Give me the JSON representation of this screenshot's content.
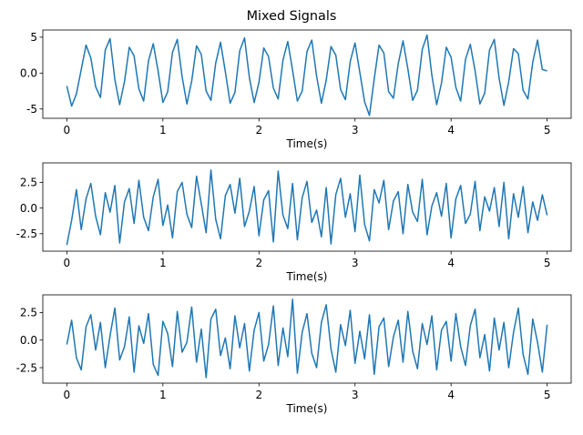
{
  "title": "Mixed Signals",
  "chart_data": [
    {
      "type": "line",
      "xlabel": "Time(s)",
      "ylabel": "",
      "xlim": [
        -0.25,
        5.25
      ],
      "ylim": [
        -6.3,
        6.0
      ],
      "xticks": [
        0,
        1,
        2,
        3,
        4,
        5
      ],
      "yticks": [
        -5,
        0,
        5
      ],
      "color": "#1f77b4",
      "grid": false,
      "series": [
        {
          "x": [
            0.0,
            0.05,
            0.1,
            0.15,
            0.2,
            0.25,
            0.3,
            0.35,
            0.4,
            0.45,
            0.5,
            0.55,
            0.6,
            0.65,
            0.7,
            0.75,
            0.8,
            0.85,
            0.9,
            0.95,
            1.0,
            1.05,
            1.1,
            1.15,
            1.2,
            1.25,
            1.3,
            1.35,
            1.4,
            1.45,
            1.5,
            1.55,
            1.6,
            1.65,
            1.7,
            1.75,
            1.8,
            1.85,
            1.9,
            1.95,
            2.0,
            2.05,
            2.1,
            2.15,
            2.2,
            2.25,
            2.3,
            2.35,
            2.4,
            2.45,
            2.5,
            2.55,
            2.6,
            2.65,
            2.7,
            2.75,
            2.8,
            2.85,
            2.9,
            2.95,
            3.0,
            3.05,
            3.1,
            3.15,
            3.2,
            3.25,
            3.3,
            3.35,
            3.4,
            3.45,
            3.5,
            3.55,
            3.6,
            3.65,
            3.7,
            3.75,
            3.8,
            3.85,
            3.9,
            3.95,
            4.0,
            4.05,
            4.1,
            4.15,
            4.2,
            4.25,
            4.3,
            4.35,
            4.4,
            4.45,
            4.5,
            4.55,
            4.6,
            4.65,
            4.7,
            4.75,
            4.8,
            4.85,
            4.9,
            4.95,
            5.0
          ],
          "values": [
            -1.8,
            -4.6,
            -2.9,
            0.5,
            3.9,
            2.1,
            -1.9,
            -3.4,
            3.2,
            4.8,
            -0.9,
            -4.4,
            -1.2,
            3.6,
            2.4,
            -2.2,
            -3.9,
            1.7,
            4.1,
            0.3,
            -4.1,
            -2.6,
            2.9,
            4.7,
            -0.5,
            -4.3,
            -1.1,
            3.8,
            2.6,
            -2.5,
            -3.8,
            1.4,
            4.3,
            0.2,
            -4.2,
            -2.7,
            3.1,
            4.9,
            -0.6,
            -4.1,
            -1.3,
            3.5,
            2.3,
            -2.1,
            -3.6,
            1.8,
            4.4,
            0.4,
            -3.9,
            -2.5,
            3.0,
            4.6,
            -0.4,
            -4.2,
            -1.0,
            3.7,
            2.5,
            -2.3,
            -3.7,
            1.6,
            4.2,
            0.1,
            -4.0,
            -5.9,
            -0.8,
            3.9,
            2.8,
            -2.6,
            -3.5,
            1.3,
            4.5,
            0.6,
            -3.8,
            -2.4,
            3.3,
            5.3,
            -0.3,
            -4.4,
            -1.4,
            3.6,
            2.2,
            -2.0,
            -3.9,
            1.9,
            4.0,
            0.3,
            -4.3,
            -2.8,
            3.2,
            4.7,
            -0.7,
            -4.5,
            -1.2,
            3.4,
            2.7,
            -2.4,
            -3.6,
            1.5,
            4.6,
            0.5,
            0.3
          ]
        }
      ]
    },
    {
      "type": "line",
      "xlabel": "Time(s)",
      "ylabel": "",
      "xlim": [
        -0.25,
        5.25
      ],
      "ylim": [
        -4.2,
        4.4
      ],
      "xticks": [
        0,
        1,
        2,
        3,
        4,
        5
      ],
      "yticks": [
        -2.5,
        0.0,
        2.5
      ],
      "color": "#1f77b4",
      "grid": false,
      "series": [
        {
          "x": [
            0.0,
            0.05,
            0.1,
            0.15,
            0.2,
            0.25,
            0.3,
            0.35,
            0.4,
            0.45,
            0.5,
            0.55,
            0.6,
            0.65,
            0.7,
            0.75,
            0.8,
            0.85,
            0.9,
            0.95,
            1.0,
            1.05,
            1.1,
            1.15,
            1.2,
            1.25,
            1.3,
            1.35,
            1.4,
            1.45,
            1.5,
            1.55,
            1.6,
            1.65,
            1.7,
            1.75,
            1.8,
            1.85,
            1.9,
            1.95,
            2.0,
            2.05,
            2.1,
            2.15,
            2.2,
            2.25,
            2.3,
            2.35,
            2.4,
            2.45,
            2.5,
            2.55,
            2.6,
            2.65,
            2.7,
            2.75,
            2.8,
            2.85,
            2.9,
            2.95,
            3.0,
            3.05,
            3.1,
            3.15,
            3.2,
            3.25,
            3.3,
            3.35,
            3.4,
            3.45,
            3.5,
            3.55,
            3.6,
            3.65,
            3.7,
            3.75,
            3.8,
            3.85,
            3.9,
            3.95,
            4.0,
            4.05,
            4.1,
            4.15,
            4.2,
            4.25,
            4.3,
            4.35,
            4.4,
            4.45,
            4.5,
            4.55,
            4.6,
            4.65,
            4.7,
            4.75,
            4.8,
            4.85,
            4.9,
            4.95,
            5.0
          ],
          "values": [
            -3.6,
            -1.2,
            1.8,
            -2.1,
            0.9,
            2.4,
            -0.8,
            -2.6,
            1.5,
            -0.4,
            2.2,
            -3.4,
            0.6,
            1.9,
            -1.5,
            2.7,
            -0.9,
            -2.2,
            1.1,
            2.8,
            -1.7,
            0.3,
            -2.9,
            1.6,
            2.5,
            -0.6,
            -1.9,
            3.1,
            0.4,
            -2.4,
            3.7,
            -1.1,
            -3.0,
            1.2,
            2.3,
            -0.5,
            2.9,
            -1.8,
            -0.3,
            2.1,
            -2.7,
            0.8,
            1.7,
            -3.3,
            3.6,
            -0.7,
            -2.0,
            2.4,
            -3.1,
            1.0,
            2.6,
            -1.4,
            -0.2,
            -2.8,
            2.0,
            -3.5,
            1.3,
            2.9,
            -0.9,
            1.4,
            -2.3,
            3.2,
            -1.6,
            -3.2,
            1.8,
            0.5,
            2.7,
            -2.1,
            0.7,
            1.6,
            -2.5,
            2.3,
            -0.4,
            -1.3,
            2.8,
            -2.6,
            0.2,
            1.5,
            -0.8,
            2.4,
            -2.9,
            0.9,
            2.2,
            -1.5,
            -0.6,
            2.6,
            -2.2,
            1.1,
            -0.3,
            2.0,
            -1.8,
            2.5,
            -3.0,
            1.4,
            -0.9,
            2.1,
            -2.4,
            0.6,
            -1.2,
            1.3,
            -0.7
          ]
        }
      ]
    },
    {
      "type": "line",
      "xlabel": "Time(s)",
      "ylabel": "",
      "xlim": [
        -0.25,
        5.25
      ],
      "ylim": [
        -3.9,
        4.1
      ],
      "xticks": [
        0,
        1,
        2,
        3,
        4,
        5
      ],
      "yticks": [
        -2.5,
        0.0,
        2.5
      ],
      "color": "#1f77b4",
      "grid": false,
      "series": [
        {
          "x": [
            0.0,
            0.05,
            0.1,
            0.15,
            0.2,
            0.25,
            0.3,
            0.35,
            0.4,
            0.45,
            0.5,
            0.55,
            0.6,
            0.65,
            0.7,
            0.75,
            0.8,
            0.85,
            0.9,
            0.95,
            1.0,
            1.05,
            1.1,
            1.15,
            1.2,
            1.25,
            1.3,
            1.35,
            1.4,
            1.45,
            1.5,
            1.55,
            1.6,
            1.65,
            1.7,
            1.75,
            1.8,
            1.85,
            1.9,
            1.95,
            2.0,
            2.05,
            2.1,
            2.15,
            2.2,
            2.25,
            2.3,
            2.35,
            2.4,
            2.45,
            2.5,
            2.55,
            2.6,
            2.65,
            2.7,
            2.75,
            2.8,
            2.85,
            2.9,
            2.95,
            3.0,
            3.05,
            3.1,
            3.15,
            3.2,
            3.25,
            3.3,
            3.35,
            3.4,
            3.45,
            3.5,
            3.55,
            3.6,
            3.65,
            3.7,
            3.75,
            3.8,
            3.85,
            3.9,
            3.95,
            4.0,
            4.05,
            4.1,
            4.15,
            4.2,
            4.25,
            4.3,
            4.35,
            4.4,
            4.45,
            4.5,
            4.55,
            4.6,
            4.65,
            4.7,
            4.75,
            4.8,
            4.85,
            4.9,
            4.95,
            5.0
          ],
          "values": [
            -0.4,
            1.8,
            -1.6,
            -2.7,
            1.2,
            2.3,
            -0.9,
            1.6,
            -2.5,
            0.4,
            2.9,
            -1.8,
            -0.6,
            2.1,
            -2.9,
            1.3,
            -0.3,
            2.4,
            -2.2,
            -3.2,
            1.7,
            0.6,
            -2.4,
            2.6,
            -1.1,
            -0.2,
            3.0,
            -2.0,
            1.0,
            -3.4,
            1.9,
            2.8,
            -1.4,
            0.2,
            -2.6,
            2.2,
            -0.7,
            1.5,
            -2.8,
            0.9,
            2.5,
            -1.9,
            -0.4,
            3.1,
            -2.3,
            1.1,
            -1.5,
            3.7,
            -3.0,
            0.7,
            2.4,
            -1.2,
            -2.5,
            1.6,
            3.2,
            -0.8,
            -2.9,
            1.4,
            -0.5,
            2.7,
            -2.1,
            0.8,
            -1.7,
            2.3,
            -3.1,
            1.2,
            2.0,
            -2.4,
            0.3,
            1.8,
            -2.0,
            2.6,
            -1.0,
            -2.6,
            1.5,
            -0.4,
            2.2,
            -2.7,
            0.9,
            1.7,
            -1.9,
            2.4,
            -0.6,
            -2.3,
            1.3,
            2.8,
            -1.6,
            0.5,
            -2.8,
            2.0,
            -0.9,
            1.6,
            -2.5,
            0.7,
            2.9,
            -1.3,
            -3.1,
            1.9,
            -0.2,
            -2.9,
            1.4
          ]
        }
      ]
    }
  ]
}
